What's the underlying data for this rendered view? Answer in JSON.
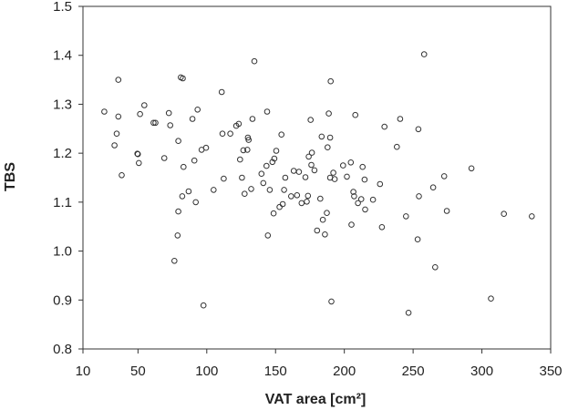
{
  "chart_data": {
    "type": "scatter",
    "title": "",
    "xlabel": "VAT area [cm²]",
    "ylabel": "TBS",
    "xlim": [
      10,
      350
    ],
    "ylim": [
      0.8,
      1.5
    ],
    "x_ticks": [
      10,
      50,
      100,
      150,
      200,
      250,
      300,
      350
    ],
    "y_ticks": [
      0.8,
      0.9,
      1.0,
      1.1,
      1.2,
      1.3,
      1.4,
      1.5
    ],
    "grid": false,
    "marker": "open-circle",
    "marker_color": "#333333",
    "points": [
      [
        25.5,
        1.285
      ],
      [
        35.7,
        1.35
      ],
      [
        35.7,
        1.275
      ],
      [
        38.2,
        1.155
      ],
      [
        34.5,
        1.24
      ],
      [
        32.9,
        1.216
      ],
      [
        54.6,
        1.298
      ],
      [
        51.5,
        1.28
      ],
      [
        49.6,
        1.199
      ],
      [
        49.9,
        1.198
      ],
      [
        50.6,
        1.18
      ],
      [
        61.3,
        1.262
      ],
      [
        62.7,
        1.262
      ],
      [
        69.1,
        1.19
      ],
      [
        72.4,
        1.282
      ],
      [
        73.4,
        1.257
      ],
      [
        81.1,
        1.355
      ],
      [
        82.6,
        1.353
      ],
      [
        76.5,
        0.98
      ],
      [
        79.3,
        1.225
      ],
      [
        78.8,
        1.032
      ],
      [
        79.3,
        1.081
      ],
      [
        82.2,
        1.112
      ],
      [
        83.1,
        1.172
      ],
      [
        86.8,
        1.122
      ],
      [
        89.6,
        1.27
      ],
      [
        93.3,
        1.289
      ],
      [
        91.0,
        1.185
      ],
      [
        92.0,
        1.1
      ],
      [
        96.2,
        1.207
      ],
      [
        99.5,
        1.211
      ],
      [
        97.6,
        0.889
      ],
      [
        105.0,
        1.125
      ],
      [
        110.9,
        1.325
      ],
      [
        111.4,
        1.24
      ],
      [
        112.3,
        1.148
      ],
      [
        117.1,
        1.24
      ],
      [
        121.4,
        1.256
      ],
      [
        123.3,
        1.26
      ],
      [
        124.2,
        1.187
      ],
      [
        125.6,
        1.15
      ],
      [
        126.6,
        1.206
      ],
      [
        127.5,
        1.117
      ],
      [
        129.5,
        1.207
      ],
      [
        129.9,
        1.232
      ],
      [
        130.4,
        1.227
      ],
      [
        132.3,
        1.127
      ],
      [
        133.2,
        1.27
      ],
      [
        134.6,
        1.388
      ],
      [
        139.8,
        1.158
      ],
      [
        141.1,
        1.139
      ],
      [
        143.4,
        1.174
      ],
      [
        143.9,
        1.285
      ],
      [
        144.4,
        1.032
      ],
      [
        145.8,
        1.125
      ],
      [
        147.7,
        1.182
      ],
      [
        148.6,
        1.077
      ],
      [
        149.1,
        1.189
      ],
      [
        150.5,
        1.205
      ],
      [
        152.9,
        1.09
      ],
      [
        154.3,
        1.238
      ],
      [
        155.2,
        1.096
      ],
      [
        156.2,
        1.125
      ],
      [
        157.1,
        1.15
      ],
      [
        161.3,
        1.112
      ],
      [
        163.2,
        1.164
      ],
      [
        165.6,
        1.114
      ],
      [
        167.0,
        1.162
      ],
      [
        168.9,
        1.098
      ],
      [
        171.7,
        1.151
      ],
      [
        172.7,
        1.101
      ],
      [
        173.6,
        1.113
      ],
      [
        174.1,
        1.193
      ],
      [
        175.5,
        1.268
      ],
      [
        176.0,
        1.176
      ],
      [
        176.4,
        1.201
      ],
      [
        178.3,
        1.165
      ],
      [
        180.2,
        1.042
      ],
      [
        182.5,
        1.107
      ],
      [
        183.5,
        1.234
      ],
      [
        184.4,
        1.064
      ],
      [
        185.9,
        1.034
      ],
      [
        187.3,
        1.078
      ],
      [
        188.7,
        1.281
      ],
      [
        187.8,
        1.212
      ],
      [
        189.7,
        1.232
      ],
      [
        189.7,
        1.15
      ],
      [
        190.1,
        1.347
      ],
      [
        190.6,
        0.897
      ],
      [
        192.0,
        1.16
      ],
      [
        193.0,
        1.147
      ],
      [
        199.1,
        1.175
      ],
      [
        201.9,
        1.152
      ],
      [
        204.7,
        1.181
      ],
      [
        205.2,
        1.054
      ],
      [
        206.6,
        1.121
      ],
      [
        207.1,
        1.112
      ],
      [
        208.0,
        1.278
      ],
      [
        209.9,
        1.098
      ],
      [
        212.3,
        1.106
      ],
      [
        213.3,
        1.172
      ],
      [
        214.7,
        1.146
      ],
      [
        215.1,
        1.085
      ],
      [
        220.8,
        1.105
      ],
      [
        225.9,
        1.137
      ],
      [
        227.3,
        1.049
      ],
      [
        229.2,
        1.254
      ],
      [
        238.2,
        1.213
      ],
      [
        240.6,
        1.27
      ],
      [
        244.8,
        1.071
      ],
      [
        246.7,
        0.874
      ],
      [
        253.3,
        1.024
      ],
      [
        253.8,
        1.249
      ],
      [
        254.2,
        1.112
      ],
      [
        258.0,
        1.402
      ],
      [
        264.6,
        1.13
      ],
      [
        266.0,
        0.967
      ],
      [
        272.6,
        1.153
      ],
      [
        274.5,
        1.082
      ],
      [
        292.4,
        1.169
      ],
      [
        306.6,
        0.903
      ],
      [
        316.0,
        1.076
      ],
      [
        336.3,
        1.071
      ]
    ]
  }
}
